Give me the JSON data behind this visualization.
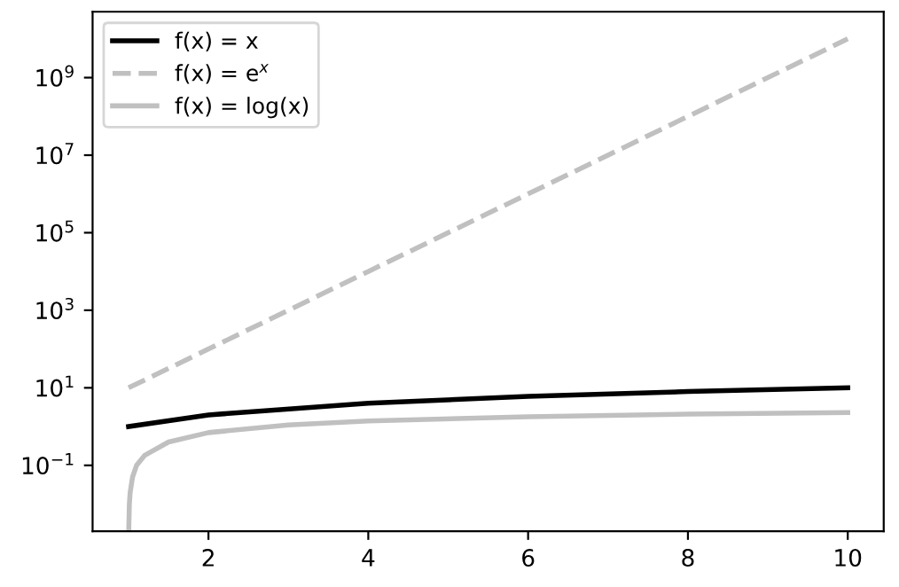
{
  "chart_data": {
    "type": "line",
    "log": "y",
    "grid": false,
    "legend": "top left",
    "marker": "none",
    "xlim": [
      0.55,
      10.45
    ],
    "ylim": [
      0.002,
      50000000000
    ],
    "xticks": [
      2,
      4,
      6,
      8,
      10
    ],
    "yticks": [
      {
        "value": 0.1,
        "label": "10$^{−1}$"
      },
      {
        "value": 10,
        "label": "10$^{1}$"
      },
      {
        "value": 1000,
        "label": "10$^{3}$"
      },
      {
        "value": 100000,
        "label": "10$^{5}$"
      },
      {
        "value": 10000000,
        "label": "10$^{7}$"
      },
      {
        "value": 1000000000,
        "label": "10$^{9}$"
      }
    ],
    "series": [
      {
        "name": "f(x) = x",
        "color": "#000000",
        "line_style": "solid",
        "x": [
          1,
          2,
          4,
          6,
          8,
          10
        ],
        "values": [
          1,
          2,
          4,
          6,
          8,
          10
        ]
      },
      {
        "name": "f(x) = e$^{x}$",
        "color": "#c0c0c0",
        "line_style": "dashed",
        "x": [
          1,
          4,
          7,
          10
        ],
        "values": [
          10,
          10000,
          10000000,
          10000000000
        ]
      },
      {
        "name": "f(x) = log(x)",
        "color": "#c0c0c0",
        "line_style": "solid",
        "x": [
          1.002,
          1.01,
          1.02,
          1.05,
          1.1,
          1.2,
          1.5,
          2,
          3,
          4,
          6,
          8,
          10
        ],
        "values": [
          0.002,
          0.01,
          0.02,
          0.05,
          0.1,
          0.18,
          0.4,
          0.7,
          1.1,
          1.4,
          1.8,
          2.1,
          2.3
        ]
      }
    ]
  }
}
